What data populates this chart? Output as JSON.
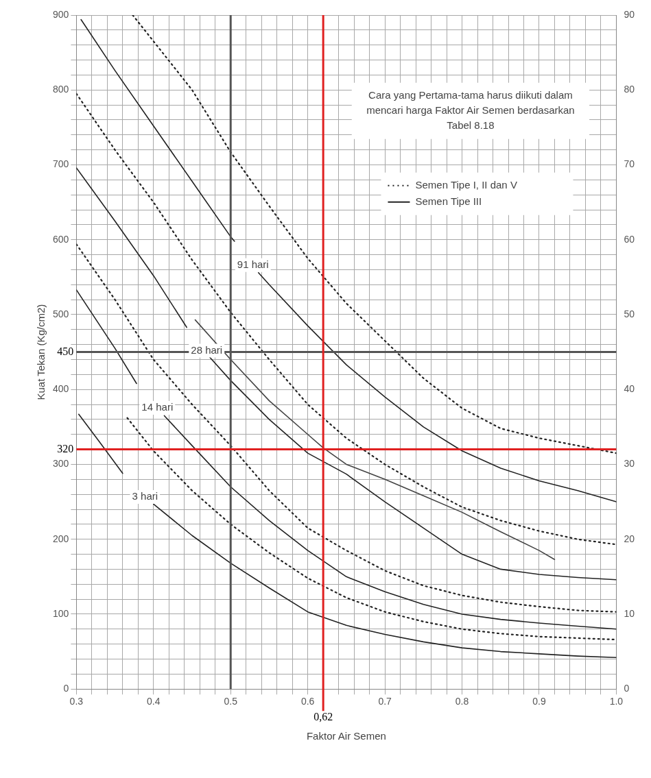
{
  "chart_data": {
    "type": "line",
    "xlabel": "Faktor Air Semen",
    "ylabel": "Kuat Tekan (Kg/cm2)",
    "xlim": [
      0.3,
      1.0
    ],
    "ylim": [
      0,
      900
    ],
    "y2lim": [
      0,
      90
    ],
    "xticks": [
      0.3,
      {
        "value": 0.32,
        "label": null
      },
      {
        "value": 0.34,
        "label": null
      },
      {
        "value": 0.36,
        "label": null
      },
      {
        "value": 0.38,
        "label": null
      },
      0.4,
      {
        "value": 0.42,
        "label": null
      },
      {
        "value": 0.44,
        "label": null
      },
      {
        "value": 0.46,
        "label": null
      },
      {
        "value": 0.48,
        "label": null
      },
      0.5,
      {
        "value": 0.52,
        "label": null
      },
      {
        "value": 0.54,
        "label": null
      },
      {
        "value": 0.56,
        "label": null
      },
      {
        "value": 0.58,
        "label": null
      },
      0.6,
      {
        "value": 0.64,
        "label": null
      },
      {
        "value": 0.66,
        "label": null
      },
      {
        "value": 0.68,
        "label": null
      },
      0.7,
      {
        "value": 0.72,
        "label": null
      },
      {
        "value": 0.74,
        "label": null
      },
      {
        "value": 0.76,
        "label": null
      },
      {
        "value": 0.78,
        "label": null
      },
      0.8,
      {
        "value": 0.82,
        "label": null
      },
      {
        "value": 0.84,
        "label": null
      },
      {
        "value": 0.86,
        "label": null
      },
      {
        "value": 0.88,
        "label": null
      },
      0.9,
      {
        "value": 0.92,
        "label": null
      },
      {
        "value": 0.94,
        "label": null
      },
      {
        "value": 0.96,
        "label": null
      },
      {
        "value": 0.98,
        "label": null
      },
      {
        "value": 1.0,
        "label": "1.0"
      }
    ],
    "yticks": [
      0,
      {
        "value": 20,
        "label": null
      },
      {
        "value": 40,
        "label": null
      },
      {
        "value": 60,
        "label": null
      },
      {
        "value": 80,
        "label": null
      },
      100,
      {
        "value": 120,
        "label": null
      },
      {
        "value": 140,
        "label": null
      },
      {
        "value": 160,
        "label": null
      },
      {
        "value": 180,
        "label": null
      },
      200,
      {
        "value": 220,
        "label": null
      },
      {
        "value": 240,
        "label": null
      },
      {
        "value": 260,
        "label": null
      },
      {
        "value": 280,
        "label": null
      },
      300,
      {
        "value": 340,
        "label": null
      },
      {
        "value": 360,
        "label": null
      },
      {
        "value": 380,
        "label": null
      },
      400,
      {
        "value": 420,
        "label": null
      },
      {
        "value": 440,
        "label": null
      },
      {
        "value": 460,
        "label": null
      },
      {
        "value": 480,
        "label": null
      },
      500,
      {
        "value": 520,
        "label": null
      },
      {
        "value": 540,
        "label": null
      },
      {
        "value": 560,
        "label": null
      },
      {
        "value": 580,
        "label": null
      },
      600,
      {
        "value": 620,
        "label": null
      },
      {
        "value": 640,
        "label": null
      },
      {
        "value": 660,
        "label": null
      },
      {
        "value": 680,
        "label": null
      },
      700,
      {
        "value": 720,
        "label": null
      },
      {
        "value": 740,
        "label": null
      },
      {
        "value": 760,
        "label": null
      },
      {
        "value": 780,
        "label": null
      },
      800,
      {
        "value": 820,
        "label": null
      },
      {
        "value": 840,
        "label": null
      },
      {
        "value": 860,
        "label": null
      },
      {
        "value": 880,
        "label": null
      },
      900
    ],
    "y2ticks": [
      0,
      10,
      20,
      30,
      40,
      50,
      60,
      70,
      80,
      90
    ],
    "grid": true,
    "legend": "top right",
    "marker": "none",
    "series": [
      {
        "name": "Semen Tipe I, II dan V",
        "color": "#222222",
        "line_style": "dotted",
        "x": [
          0.373,
          0.4,
          0.45,
          0.5,
          0.55,
          0.6,
          0.65,
          0.7,
          0.75,
          0.8,
          0.85,
          0.9,
          0.95,
          1.0
        ],
        "values": [
          900,
          865,
          800,
          717,
          645,
          575,
          515,
          465,
          415,
          375,
          348,
          335,
          325,
          315
        ]
      },
      {
        "name": "Semen Tipe III",
        "color": "#222222",
        "line_style": "solid",
        "x": [
          0.306,
          0.35,
          0.4,
          0.45,
          0.5,
          0.505,
          0.52,
          0.536,
          0.55,
          0.6,
          0.65,
          0.7,
          0.75,
          0.8,
          0.85,
          0.9,
          0.95,
          1.0
        ],
        "values": [
          894,
          826,
          752,
          678,
          604,
          598,
          null,
          556,
          540,
          485,
          433,
          390,
          350,
          318,
          295,
          278,
          265,
          250
        ]
      },
      {
        "color": "#222222",
        "line_style": "dotted",
        "x": [
          0.3,
          0.35,
          0.4,
          0.45,
          0.5,
          0.55,
          0.6,
          0.65,
          0.7,
          0.75,
          0.8,
          0.85,
          0.9,
          0.95,
          1.0
        ],
        "values": [
          795,
          720,
          650,
          573,
          503,
          440,
          380,
          335,
          300,
          270,
          243,
          225,
          211,
          200,
          193
        ]
      },
      {
        "color": "#222222",
        "line_style": "solid",
        "x": [
          0.3,
          0.35,
          0.4,
          0.443,
          0.46,
          0.473,
          0.5,
          0.55,
          0.6,
          0.65,
          0.7,
          0.75,
          0.8,
          0.85,
          0.9,
          0.95,
          1.0
        ],
        "values": [
          696,
          625,
          552,
          483,
          null,
          443,
          412,
          360,
          315,
          287,
          250,
          215,
          180,
          160,
          153,
          149,
          146
        ]
      },
      {
        "color": "#444444",
        "line_style": "solid",
        "x": [
          0.454,
          0.5,
          0.55,
          0.6,
          0.62,
          0.65,
          0.7,
          0.75,
          0.8,
          0.85,
          0.9,
          0.92
        ],
        "values": [
          493,
          440,
          385,
          340,
          322,
          300,
          280,
          258,
          236,
          210,
          185,
          173
        ]
      },
      {
        "color": "#222222",
        "line_style": "dotted",
        "x": [
          0.3,
          0.35,
          0.4,
          0.45,
          0.5,
          0.55,
          0.6,
          0.65,
          0.7,
          0.75,
          0.8,
          0.85,
          0.9,
          0.95,
          1.0
        ],
        "values": [
          594,
          520,
          440,
          380,
          325,
          265,
          215,
          185,
          158,
          138,
          125,
          116,
          110,
          105,
          103
        ]
      },
      {
        "color": "#222222",
        "line_style": "solid",
        "x": [
          0.3,
          0.35,
          0.378,
          0.396,
          0.414,
          0.45,
          0.5,
          0.55,
          0.6,
          0.65,
          0.7,
          0.75,
          0.8,
          0.85,
          0.9,
          0.95,
          1.0
        ],
        "values": [
          533,
          455,
          408,
          null,
          365,
          325,
          270,
          225,
          185,
          150,
          130,
          113,
          100,
          93,
          88,
          84,
          80
        ]
      },
      {
        "color": "#222222",
        "line_style": "dotted",
        "x": [
          0.366,
          0.4,
          0.45,
          0.5,
          0.55,
          0.6,
          0.65,
          0.7,
          0.75,
          0.8,
          0.85,
          0.9,
          0.95,
          1.0
        ],
        "values": [
          362,
          318,
          265,
          220,
          182,
          148,
          122,
          103,
          90,
          80,
          74,
          70,
          68,
          66
        ]
      },
      {
        "color": "#222222",
        "line_style": "solid",
        "x": [
          0.303,
          0.33,
          0.36,
          0.38,
          0.4,
          0.45,
          0.5,
          0.55,
          0.6,
          0.65,
          0.7,
          0.75,
          0.8,
          0.85,
          0.9,
          0.95,
          1.0
        ],
        "values": [
          367,
          330,
          288,
          null,
          247,
          205,
          168,
          135,
          103,
          85,
          73,
          63,
          55,
          50,
          47,
          44,
          42
        ]
      }
    ],
    "ref_lines": [
      {
        "axis": "y",
        "value": 450,
        "label": "450",
        "color": "#555555"
      },
      {
        "axis": "x",
        "value": 0.5,
        "color": "#555555"
      },
      {
        "axis": "y",
        "value": 320,
        "label": "320",
        "color": "#e02020"
      },
      {
        "axis": "x",
        "value": 0.62,
        "label": "0,62",
        "color": "#e02020"
      }
    ],
    "annotations": [
      "Cara yang Pertama-tama harus diikuti dalam mencari harga Faktor Air Semen berdasarkan Tabel 8.18",
      "91 hari",
      "28 hari",
      "14 hari",
      "3 hari"
    ]
  }
}
